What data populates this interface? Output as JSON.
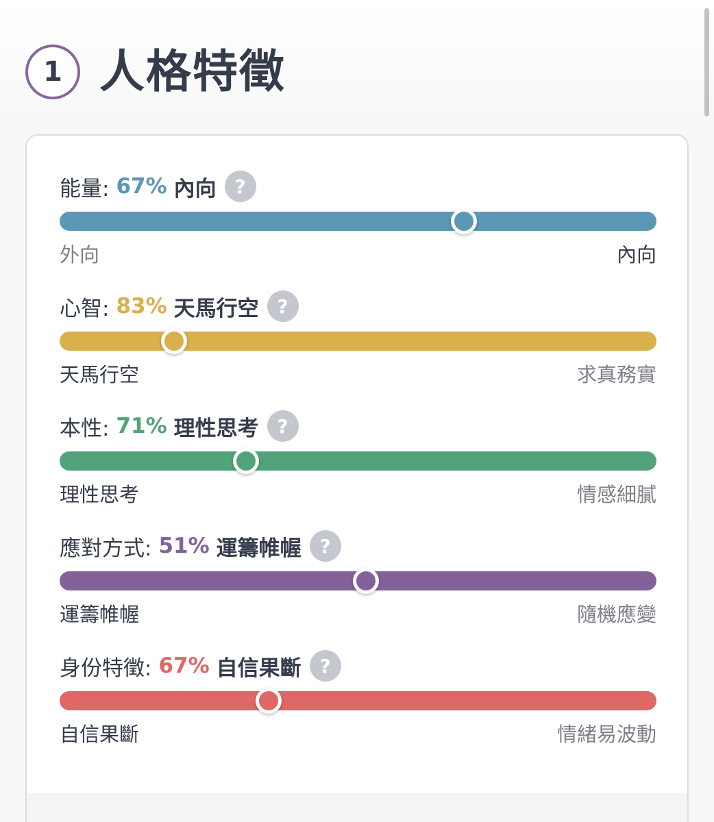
{
  "section": {
    "number": "1",
    "title": "人格特徵"
  },
  "help_icon_glyph": "?",
  "colors": {
    "text_dark": "#343c4c",
    "text_muted": "#7d818a",
    "help_icon": "#c4c7cd",
    "step_circle_border": "#86679c"
  },
  "traits": [
    {
      "category": "能量:",
      "percent": "67%",
      "result": "內向",
      "color": "#5c98b5",
      "position": 0.677,
      "left_label": "外向",
      "right_label": "內向",
      "highlight": "right"
    },
    {
      "category": "心智:",
      "percent": "83%",
      "result": "天馬行空",
      "color": "#d9b04c",
      "position": 0.192,
      "left_label": "天馬行空",
      "right_label": "求真務實",
      "highlight": "left"
    },
    {
      "category": "本性:",
      "percent": "71%",
      "result": "理性思考",
      "color": "#53a37a",
      "position": 0.312,
      "left_label": "理性思考",
      "right_label": "情感細膩",
      "highlight": "left"
    },
    {
      "category": "應對方式:",
      "percent": "51%",
      "result": "運籌帷幄",
      "color": "#836299",
      "position": 0.513,
      "left_label": "運籌帷幄",
      "right_label": "隨機應變",
      "highlight": "left"
    },
    {
      "category": "身份特徵:",
      "percent": "67%",
      "result": "自信果斷",
      "color": "#df6766",
      "position": 0.35,
      "left_label": "自信果斷",
      "right_label": "情緒易波動",
      "highlight": "left"
    }
  ]
}
